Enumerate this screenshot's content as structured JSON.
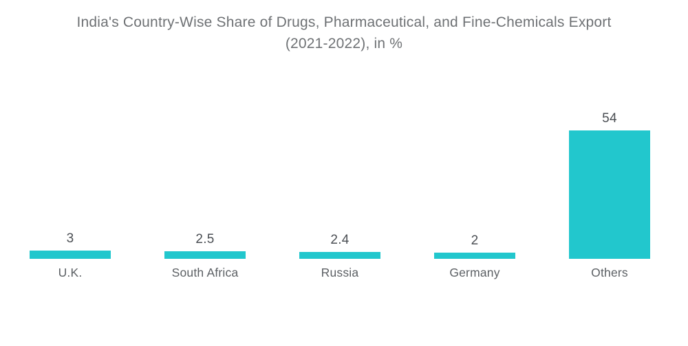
{
  "colors": {
    "bar": "#22C7CD",
    "title_text": "#6E7174",
    "value_text": "#4A4E53",
    "category_text": "#5B5F63",
    "background": "#FFFFFF"
  },
  "chart_data": {
    "type": "bar",
    "orientation": "vertical",
    "title": "India's Country-Wise Share of Drugs, Pharmaceutical, and Fine-Chemicals Export (2021-2022), in %",
    "title_lines": [
      "India's Country-Wise Share of Drugs, Pharmaceutical, and Fine-Chemicals Export",
      "(2021-2022), in %"
    ],
    "categories": [
      "U.K.",
      "South Africa",
      "Russia",
      "Germany",
      "Others"
    ],
    "values": [
      3,
      2.5,
      2.4,
      2,
      54
    ],
    "value_labels": [
      "3",
      "2.5",
      "2.4",
      "2",
      "54"
    ],
    "unit": "%",
    "xlabel": "",
    "ylabel": "",
    "ylim": [
      0,
      54
    ],
    "grid": false,
    "legend": false,
    "axes_visible": false
  }
}
